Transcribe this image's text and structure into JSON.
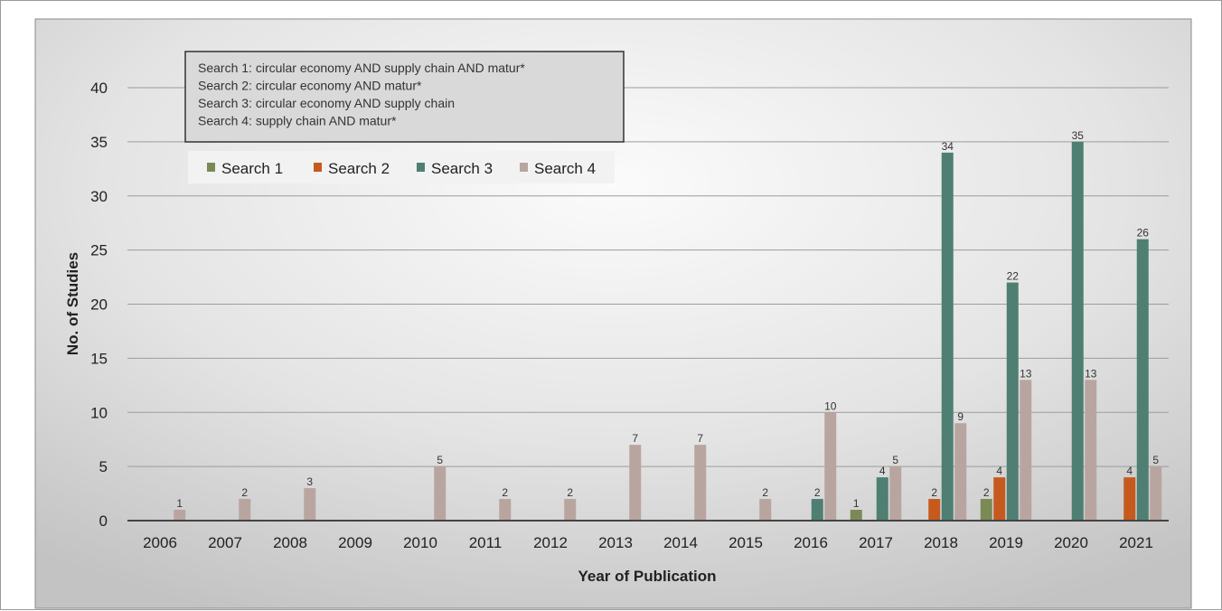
{
  "chart_data": {
    "type": "bar",
    "xlabel": "Year of Publication",
    "ylabel": "No. of Studies",
    "ylim": [
      0,
      40
    ],
    "yticks": [
      0,
      5,
      10,
      15,
      20,
      25,
      30,
      35,
      40
    ],
    "grid": true,
    "legend_position": "top-left",
    "categories": [
      "2006",
      "2007",
      "2008",
      "2009",
      "2010",
      "2011",
      "2012",
      "2013",
      "2014",
      "2015",
      "2016",
      "2017",
      "2018",
      "2019",
      "2020",
      "2021"
    ],
    "series": [
      {
        "name": "Search 1",
        "color": "#7a8a56",
        "values": [
          0,
          0,
          0,
          0,
          0,
          0,
          0,
          0,
          0,
          0,
          0,
          1,
          0,
          2,
          0,
          0
        ]
      },
      {
        "name": "Search 2",
        "color": "#c65a1e",
        "values": [
          0,
          0,
          0,
          0,
          0,
          0,
          0,
          0,
          0,
          0,
          0,
          0,
          2,
          4,
          0,
          4
        ]
      },
      {
        "name": "Search 3",
        "color": "#4e7f72",
        "values": [
          0,
          0,
          0,
          0,
          0,
          0,
          0,
          0,
          0,
          0,
          2,
          4,
          34,
          22,
          35,
          26
        ]
      },
      {
        "name": "Search 4",
        "color": "#b9a5a0",
        "values": [
          1,
          2,
          3,
          0,
          5,
          2,
          2,
          7,
          7,
          2,
          10,
          5,
          9,
          13,
          13,
          5
        ]
      }
    ],
    "annotations": [
      "Search 1: circular economy AND supply chain AND matur*",
      "Search 2: circular economy AND matur*",
      "Search 3: circular economy AND supply chain",
      "Search 4: supply chain AND matur*"
    ]
  }
}
